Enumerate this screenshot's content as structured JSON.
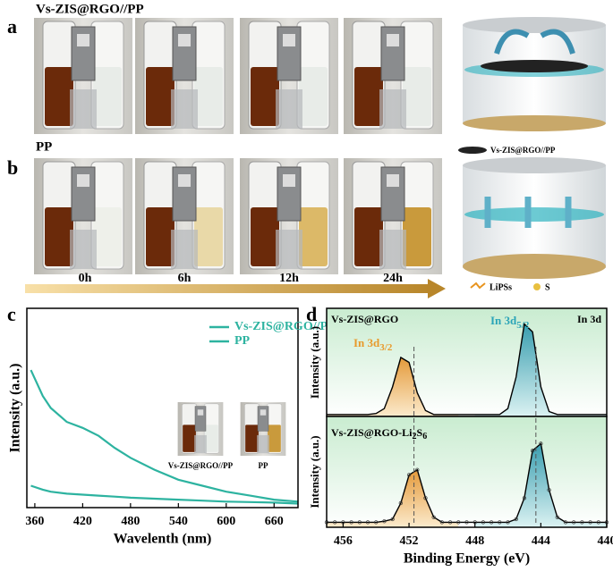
{
  "panels": {
    "a": {
      "label": "a",
      "title": "Vs-ZIS@RGO//PP"
    },
    "b": {
      "label": "b",
      "title": "PP",
      "times": [
        "0h",
        "6h",
        "12h",
        "24h"
      ]
    },
    "schematic": {
      "membrane_legend": "Vs-ZIS@RGO//PP",
      "lipss": "LiPSs",
      "s": "S"
    }
  },
  "chart_data": [
    {
      "type": "line",
      "panel_label": "c",
      "xlabel": "Wavelenth (nm)",
      "ylabel": "Intensity (a.u.)",
      "x": [
        355,
        370,
        380,
        400,
        420,
        440,
        460,
        480,
        510,
        540,
        570,
        600,
        630,
        660,
        690
      ],
      "series": [
        {
          "name": "Vs-ZIS@RGO//PP",
          "color": "#2db3a0",
          "values": [
            0.11,
            0.09,
            0.08,
            0.07,
            0.065,
            0.06,
            0.055,
            0.05,
            0.045,
            0.04,
            0.035,
            0.03,
            0.028,
            0.025,
            0.02
          ]
        },
        {
          "name": "PP",
          "color": "#2db3a0",
          "values": [
            0.69,
            0.56,
            0.5,
            0.43,
            0.4,
            0.36,
            0.3,
            0.25,
            0.19,
            0.14,
            0.11,
            0.08,
            0.06,
            0.04,
            0.03
          ]
        }
      ],
      "xlim": [
        350,
        690
      ],
      "xticks": [
        360,
        420,
        480,
        540,
        600,
        660
      ],
      "ylim": [
        0,
        1
      ],
      "inset_labels": [
        "Vs-ZIS@RGO//PP",
        "PP"
      ]
    },
    {
      "type": "line",
      "panel_label": "d",
      "label": "Vs-ZIS@RGO",
      "core_level": "In 3d",
      "ylabel": "Intensity (a.u.)",
      "peaks": [
        {
          "label": "In 3d",
          "sub": "3/2",
          "color": "#e89a2c"
        },
        {
          "label": "In 3d",
          "sub": "5/2",
          "color": "#2aa4b8"
        }
      ],
      "x": [
        457,
        456.5,
        456,
        455.5,
        455,
        454.5,
        454,
        453.5,
        453,
        452.5,
        452,
        451.5,
        451,
        450.5,
        450,
        449.5,
        449,
        448.5,
        448,
        447.5,
        447,
        446.5,
        446,
        445.5,
        445,
        444.5,
        444,
        443.5,
        443,
        442.5,
        442,
        441.5,
        441,
        440.5,
        440
      ],
      "series": [
        {
          "color": "#000000",
          "values": [
            0.02,
            0.02,
            0.02,
            0.02,
            0.02,
            0.02,
            0.03,
            0.08,
            0.3,
            0.6,
            0.55,
            0.24,
            0.06,
            0.02,
            0.02,
            0.02,
            0.02,
            0.02,
            0.02,
            0.02,
            0.02,
            0.02,
            0.08,
            0.4,
            0.94,
            0.86,
            0.3,
            0.05,
            0.02,
            0.02,
            0.02,
            0.02,
            0.02,
            0.02,
            0.02
          ]
        }
      ],
      "xlim": [
        457,
        440
      ],
      "ylim": [
        0,
        1.1
      ],
      "markers": [
        451.7,
        444.3
      ]
    },
    {
      "type": "line",
      "label_parts": [
        "Vs-ZIS@RGO-Li",
        "2",
        "S",
        "6"
      ],
      "ylabel": "Intensity (a.u.)",
      "xlabel": "Binding Energy (eV)",
      "x": [
        457,
        456.5,
        456,
        455.5,
        455,
        454.5,
        454,
        453.5,
        453,
        452.5,
        452,
        451.5,
        451,
        450.5,
        450,
        449.5,
        449,
        448.5,
        448,
        447.5,
        447,
        446.5,
        446,
        445.5,
        445,
        444.5,
        444,
        443.5,
        443,
        442.5,
        442,
        441.5,
        441,
        440.5,
        440
      ],
      "series": [
        {
          "color": "#000000",
          "values": [
            0.05,
            0.05,
            0.05,
            0.05,
            0.05,
            0.05,
            0.05,
            0.06,
            0.08,
            0.24,
            0.52,
            0.57,
            0.29,
            0.1,
            0.05,
            0.05,
            0.05,
            0.05,
            0.05,
            0.05,
            0.05,
            0.05,
            0.05,
            0.08,
            0.29,
            0.76,
            0.83,
            0.37,
            0.1,
            0.05,
            0.05,
            0.05,
            0.05,
            0.05,
            0.05
          ]
        }
      ],
      "xlim": [
        457,
        440
      ],
      "xticks": [
        456,
        452,
        448,
        444,
        440
      ],
      "ylim": [
        0,
        1.1
      ]
    }
  ]
}
